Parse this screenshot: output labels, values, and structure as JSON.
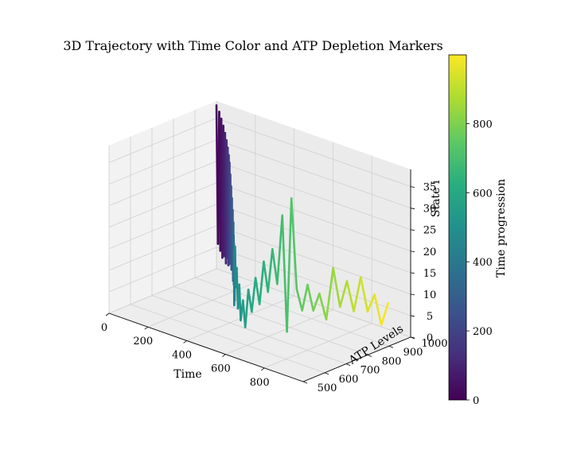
{
  "chart_data": {
    "type": "line",
    "title": "3D Trajectory with Time Color and ATP Depletion Markers",
    "xlabel": "Time",
    "ylabel": "ATP Levels",
    "zlabel": "State i",
    "xlim": [
      0,
      1000
    ],
    "ylim": [
      500,
      1000
    ],
    "zlim": [
      0,
      39
    ],
    "x_ticks": [
      "0",
      "200",
      "400",
      "600",
      "800"
    ],
    "y_ticks": [
      "500",
      "600",
      "700",
      "800",
      "900",
      "1000"
    ],
    "z_ticks": [
      "0",
      "5",
      "10",
      "15",
      "20",
      "25",
      "30",
      "35"
    ],
    "colorbar": {
      "label": "Time progression",
      "range": [
        0,
        999
      ],
      "ticks": [
        "0",
        "200",
        "400",
        "600",
        "800"
      ],
      "colormap": "viridis"
    },
    "grid": true,
    "series": [
      {
        "points": [
          [
            0,
            1000,
            38
          ],
          [
            10,
            998,
            6
          ],
          [
            22,
            993,
            37
          ],
          [
            34,
            987,
            5
          ],
          [
            46,
            981,
            36
          ],
          [
            58,
            975,
            4
          ],
          [
            70,
            969,
            35
          ],
          [
            82,
            962,
            5
          ],
          [
            94,
            955,
            34
          ],
          [
            106,
            948,
            4
          ],
          [
            118,
            940,
            33
          ],
          [
            130,
            932,
            6
          ],
          [
            142,
            924,
            32
          ],
          [
            154,
            916,
            5
          ],
          [
            166,
            907,
            31
          ],
          [
            178,
            898,
            6
          ],
          [
            190,
            889,
            30
          ],
          [
            202,
            880,
            7
          ],
          [
            214,
            871,
            28
          ],
          [
            226,
            862,
            8
          ],
          [
            238,
            853,
            26
          ],
          [
            250,
            844,
            7
          ],
          [
            262,
            835,
            24
          ],
          [
            274,
            826,
            8
          ],
          [
            286,
            817,
            22
          ],
          [
            300,
            806,
            6
          ],
          [
            314,
            795,
            20
          ],
          [
            328,
            783,
            8
          ],
          [
            342,
            771,
            18
          ],
          [
            356,
            759,
            7
          ],
          [
            370,
            747,
            17
          ],
          [
            384,
            735,
            9
          ],
          [
            396,
            724,
            14
          ],
          [
            410,
            712,
            4
          ],
          [
            424,
            700,
            17
          ],
          [
            438,
            689,
            6
          ],
          [
            452,
            678,
            19
          ],
          [
            468,
            667,
            10
          ],
          [
            484,
            657,
            15
          ],
          [
            500,
            648,
            6
          ],
          [
            516,
            640,
            12
          ],
          [
            530,
            634,
            4
          ],
          [
            546,
            630,
            9
          ],
          [
            560,
            628,
            3
          ],
          [
            576,
            628,
            12
          ],
          [
            590,
            631,
            7
          ],
          [
            604,
            636,
            15
          ],
          [
            618,
            642,
            9
          ],
          [
            632,
            649,
            19
          ],
          [
            646,
            656,
            12
          ],
          [
            660,
            664,
            22
          ],
          [
            676,
            672,
            14
          ],
          [
            692,
            681,
            30
          ],
          [
            706,
            690,
            3
          ],
          [
            718,
            700,
            34
          ],
          [
            734,
            710,
            13
          ],
          [
            750,
            721,
            8
          ],
          [
            766,
            732,
            14
          ],
          [
            782,
            744,
            8
          ],
          [
            800,
            756,
            12
          ],
          [
            820,
            770,
            6
          ],
          [
            840,
            784,
            18
          ],
          [
            860,
            798,
            9
          ],
          [
            880,
            812,
            15
          ],
          [
            900,
            826,
            8
          ],
          [
            920,
            840,
            16
          ],
          [
            940,
            854,
            8
          ],
          [
            960,
            868,
            12
          ],
          [
            980,
            882,
            5
          ],
          [
            999,
            896,
            10
          ]
        ]
      }
    ]
  }
}
